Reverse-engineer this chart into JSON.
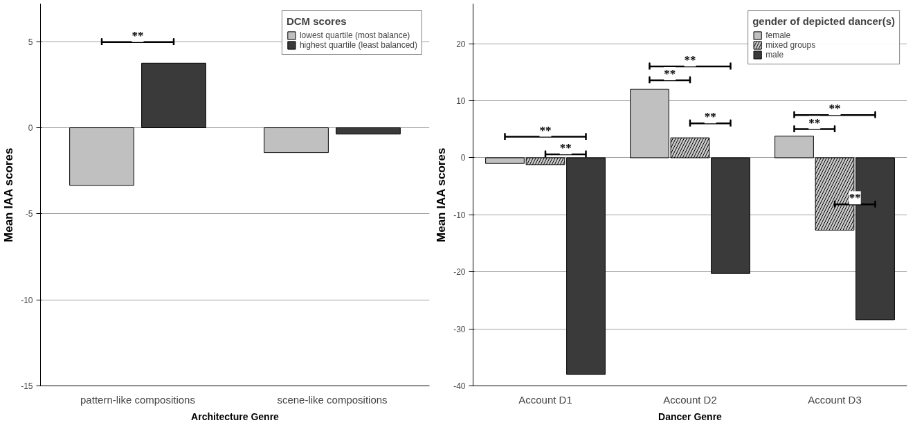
{
  "chart_data": [
    {
      "type": "bar",
      "xlabel": "Architecture Genre",
      "ylabel": "Mean IAA scores",
      "legend_title": "DCM scores",
      "categories": [
        "pattern-like compositions",
        "scene-like compositions"
      ],
      "series": [
        {
          "name": "lowest quartile (most balance)",
          "color": "#c0c0c0",
          "values": [
            -3.35,
            -1.45
          ]
        },
        {
          "name": "highest quartile (least balanced)",
          "color": "#3a3a3a",
          "values": [
            3.75,
            -0.37
          ]
        }
      ],
      "ylim": [
        -15,
        7.2
      ],
      "yticks": [
        -15,
        -10,
        -5,
        0,
        5
      ],
      "grid": "y",
      "legend": "top right",
      "annotations": [
        "**"
      ]
    },
    {
      "type": "bar",
      "xlabel": "Dancer Genre",
      "ylabel": "Mean IAA scores",
      "legend_title": "gender of depicted dancer(s)",
      "categories": [
        "Account D1",
        "Account D2",
        "Account D3"
      ],
      "series": [
        {
          "name": "female",
          "color": "#c0c0c0",
          "values": [
            -1.0,
            12.0,
            3.8
          ]
        },
        {
          "name": "mixed groups",
          "color": "#c8c8c8",
          "values": [
            -1.2,
            3.5,
            -12.7
          ]
        },
        {
          "name": "male",
          "color": "#3a3a3a",
          "values": [
            -38.0,
            -20.3,
            -28.4
          ]
        }
      ],
      "ylim": [
        -40,
        27
      ],
      "yticks": [
        -40,
        -30,
        -20,
        -10,
        0,
        10,
        20
      ],
      "grid": "y",
      "legend": "top right",
      "annotations": [
        "**",
        "**",
        "**",
        "**",
        "**",
        "**",
        "**",
        "**"
      ]
    }
  ]
}
